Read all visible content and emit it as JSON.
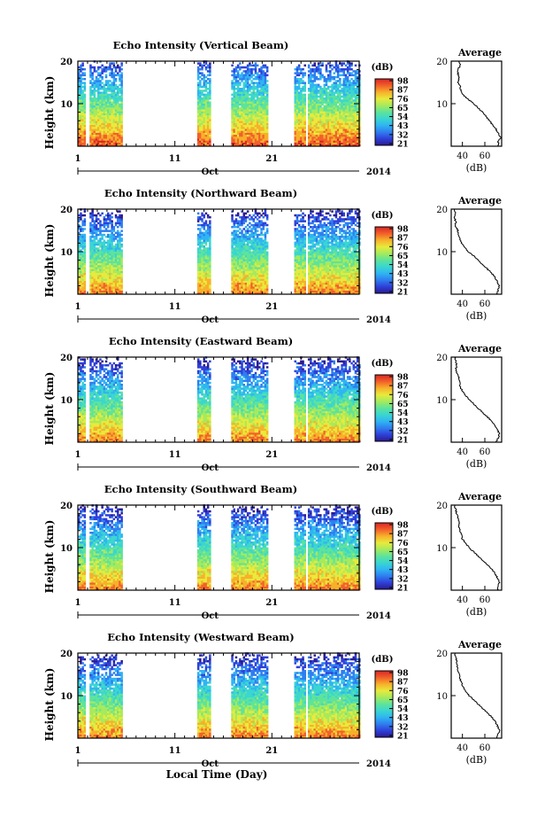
{
  "chart_data": [
    {
      "type": "heatmap",
      "title": "Echo Intensity (Vertical Beam)",
      "ylabel": "Height (km)",
      "ylim": [
        0,
        20
      ],
      "yticks": [
        10,
        20
      ],
      "xlim": [
        1,
        30
      ],
      "xticks": [
        1,
        11,
        21
      ],
      "axis_month": "Oct",
      "axis_year": "2014",
      "colorbar": {
        "label": "(dB)",
        "ticks": [
          98,
          87,
          76,
          65,
          54,
          43,
          32,
          21
        ]
      },
      "data_day_ranges": [
        [
          1,
          1.8
        ],
        [
          2.2,
          5.5
        ],
        [
          13.3,
          14.6
        ],
        [
          16.8,
          20.5
        ],
        [
          23.3,
          24.4
        ],
        [
          24.7,
          30
        ]
      ],
      "profile": {
        "title": "Average",
        "xlabel": "(dB)",
        "xticks": [
          40,
          60
        ],
        "xlim": [
          30,
          75
        ],
        "ylim": [
          0,
          20
        ],
        "yticks": [
          10,
          20
        ],
        "points": [
          [
            37,
            20
          ],
          [
            38,
            19
          ],
          [
            36,
            18
          ],
          [
            36,
            17
          ],
          [
            37,
            16
          ],
          [
            36,
            15
          ],
          [
            38,
            14
          ],
          [
            39,
            13
          ],
          [
            41,
            12
          ],
          [
            45,
            11
          ],
          [
            50,
            10
          ],
          [
            54,
            9
          ],
          [
            58,
            8
          ],
          [
            61,
            7
          ],
          [
            64,
            6
          ],
          [
            67,
            5
          ],
          [
            70,
            4
          ],
          [
            72,
            3
          ],
          [
            74,
            2
          ],
          [
            72,
            1
          ],
          [
            72,
            0
          ]
        ]
      }
    },
    {
      "type": "heatmap",
      "title": "Echo Intensity (Northward Beam)",
      "ylabel": "Height (km)",
      "ylim": [
        0,
        20
      ],
      "yticks": [
        10,
        20
      ],
      "xlim": [
        1,
        30
      ],
      "xticks": [
        1,
        11,
        21
      ],
      "axis_month": "Oct",
      "axis_year": "2014",
      "colorbar": {
        "label": "(dB)",
        "ticks": [
          98,
          87,
          76,
          65,
          54,
          43,
          32,
          21
        ]
      },
      "data_day_ranges": [
        [
          1,
          1.8
        ],
        [
          2.2,
          5.5
        ],
        [
          13.3,
          14.6
        ],
        [
          16.8,
          20.5
        ],
        [
          23.3,
          24.4
        ],
        [
          24.7,
          30
        ]
      ],
      "profile": {
        "title": "Average",
        "xlabel": "(dB)",
        "xticks": [
          40,
          60
        ],
        "xlim": [
          30,
          75
        ],
        "ylim": [
          0,
          20
        ],
        "yticks": [
          10,
          20
        ],
        "points": [
          [
            33,
            20
          ],
          [
            34,
            19
          ],
          [
            33,
            18
          ],
          [
            34,
            17
          ],
          [
            34,
            16
          ],
          [
            36,
            15
          ],
          [
            36,
            14
          ],
          [
            38,
            13
          ],
          [
            39,
            12
          ],
          [
            42,
            11
          ],
          [
            45,
            10
          ],
          [
            50,
            9
          ],
          [
            54,
            8
          ],
          [
            58,
            7
          ],
          [
            62,
            6
          ],
          [
            66,
            5
          ],
          [
            69,
            4
          ],
          [
            71,
            3
          ],
          [
            73,
            2
          ],
          [
            72,
            1
          ],
          [
            70,
            0
          ]
        ]
      }
    },
    {
      "type": "heatmap",
      "title": "Echo Intensity (Eastward Beam)",
      "ylabel": "Height (km)",
      "ylim": [
        0,
        20
      ],
      "yticks": [
        10,
        20
      ],
      "xlim": [
        1,
        30
      ],
      "xticks": [
        1,
        11,
        21
      ],
      "axis_month": "Oct",
      "axis_year": "2014",
      "colorbar": {
        "label": "(dB)",
        "ticks": [
          98,
          87,
          76,
          65,
          54,
          43,
          32,
          21
        ]
      },
      "data_day_ranges": [
        [
          1,
          1.8
        ],
        [
          2.2,
          5.5
        ],
        [
          13.3,
          14.6
        ],
        [
          16.8,
          20.5
        ],
        [
          23.3,
          24.4
        ],
        [
          24.7,
          30
        ]
      ],
      "profile": {
        "title": "Average",
        "xlabel": "(dB)",
        "xticks": [
          40,
          60
        ],
        "xlim": [
          30,
          75
        ],
        "ylim": [
          0,
          20
        ],
        "yticks": [
          10,
          20
        ],
        "points": [
          [
            33,
            20
          ],
          [
            34,
            19
          ],
          [
            35,
            18
          ],
          [
            34,
            17
          ],
          [
            36,
            16
          ],
          [
            37,
            15
          ],
          [
            38,
            14
          ],
          [
            38,
            13
          ],
          [
            40,
            12
          ],
          [
            43,
            11
          ],
          [
            46,
            10
          ],
          [
            50,
            9
          ],
          [
            54,
            8
          ],
          [
            58,
            7
          ],
          [
            62,
            6
          ],
          [
            66,
            5
          ],
          [
            69,
            4
          ],
          [
            71,
            3
          ],
          [
            73,
            2
          ],
          [
            72,
            1
          ],
          [
            70,
            0
          ]
        ]
      }
    },
    {
      "type": "heatmap",
      "title": "Echo Intensity (Southward Beam)",
      "ylabel": "Height (km)",
      "ylim": [
        0,
        20
      ],
      "yticks": [
        10,
        20
      ],
      "xlim": [
        1,
        30
      ],
      "xticks": [
        1,
        11,
        21
      ],
      "axis_month": "Oct",
      "axis_year": "2014",
      "colorbar": {
        "label": "(dB)",
        "ticks": [
          98,
          87,
          76,
          65,
          54,
          43,
          32,
          21
        ]
      },
      "data_day_ranges": [
        [
          1,
          1.8
        ],
        [
          2.2,
          5.5
        ],
        [
          13.3,
          14.6
        ],
        [
          16.8,
          20.5
        ],
        [
          23.3,
          24.4
        ],
        [
          24.7,
          30
        ]
      ],
      "profile": {
        "title": "Average",
        "xlabel": "(dB)",
        "xticks": [
          40,
          60
        ],
        "xlim": [
          30,
          75
        ],
        "ylim": [
          0,
          20
        ],
        "yticks": [
          10,
          20
        ],
        "points": [
          [
            33,
            20
          ],
          [
            34,
            19
          ],
          [
            35,
            18
          ],
          [
            36,
            17
          ],
          [
            37,
            16
          ],
          [
            37,
            15
          ],
          [
            38,
            14
          ],
          [
            39,
            13
          ],
          [
            40,
            12
          ],
          [
            43,
            11
          ],
          [
            46,
            10
          ],
          [
            50,
            9
          ],
          [
            54,
            8
          ],
          [
            58,
            7
          ],
          [
            62,
            6
          ],
          [
            66,
            5
          ],
          [
            69,
            4
          ],
          [
            71,
            3
          ],
          [
            73,
            2
          ],
          [
            72,
            1
          ],
          [
            71,
            0
          ]
        ]
      }
    },
    {
      "type": "heatmap",
      "title": "Echo Intensity (Westward Beam)",
      "ylabel": "Height (km)",
      "ylim": [
        0,
        20
      ],
      "yticks": [
        10,
        20
      ],
      "xlim": [
        1,
        30
      ],
      "xticks": [
        1,
        11,
        21
      ],
      "axis_month": "Oct",
      "axis_year": "2014",
      "colorbar": {
        "label": "(dB)",
        "ticks": [
          98,
          87,
          76,
          65,
          54,
          43,
          32,
          21
        ]
      },
      "data_day_ranges": [
        [
          1,
          1.8
        ],
        [
          2.2,
          5.5
        ],
        [
          13.3,
          14.6
        ],
        [
          16.8,
          20.5
        ],
        [
          23.3,
          24.4
        ],
        [
          24.7,
          30
        ]
      ],
      "profile": {
        "title": "Average",
        "xlabel": "(dB)",
        "xticks": [
          40,
          60
        ],
        "xlim": [
          30,
          75
        ],
        "ylim": [
          0,
          20
        ],
        "yticks": [
          10,
          20
        ],
        "points": [
          [
            33,
            20
          ],
          [
            34,
            19
          ],
          [
            35,
            18
          ],
          [
            35,
            17
          ],
          [
            36,
            16
          ],
          [
            37,
            15
          ],
          [
            38,
            14
          ],
          [
            39,
            13
          ],
          [
            41,
            12
          ],
          [
            43,
            11
          ],
          [
            46,
            10
          ],
          [
            50,
            9
          ],
          [
            54,
            8
          ],
          [
            58,
            7
          ],
          [
            62,
            6
          ],
          [
            66,
            5
          ],
          [
            69,
            4
          ],
          [
            71,
            3
          ],
          [
            73,
            2
          ],
          [
            72,
            1
          ],
          [
            71,
            0
          ]
        ]
      }
    }
  ],
  "shared_xlabel": "Local Time (Day)",
  "colormap": [
    "#2b1b8f",
    "#2f40d8",
    "#2f7ef0",
    "#2fb5f2",
    "#3ad6d0",
    "#5ee39a",
    "#a6ea5c",
    "#e8ea3c",
    "#f7b02a",
    "#f2602a",
    "#d92626"
  ]
}
